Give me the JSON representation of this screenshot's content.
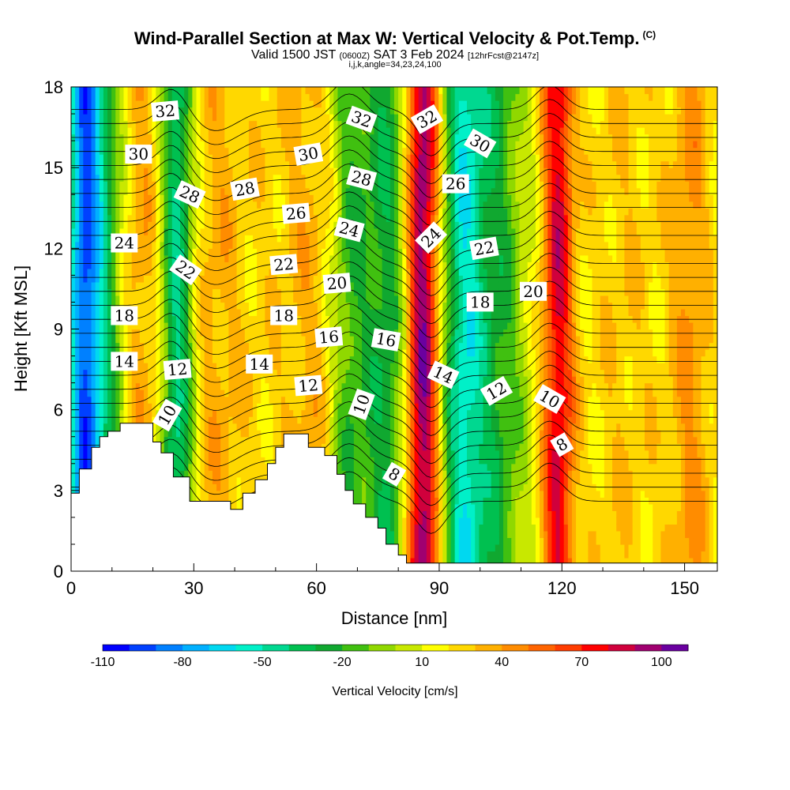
{
  "header": {
    "title": "Wind-Parallel Section at Max W: Vertical Velocity & Pot.Temp.",
    "copyright": "(C)",
    "valid_prefix": "Valid 1500 JST",
    "valid_utc": "(0600Z)",
    "valid_date": "SAT 3 Feb 2024",
    "forecast": "[12hrFcst@2147z]",
    "ijk_line": "i,j,k,angle=34,23,24,100"
  },
  "chart_data": {
    "type": "heatmap",
    "xlabel": "Distance [nm]",
    "ylabel": "Height [Kft MSL]",
    "xlim": [
      0,
      158
    ],
    "ylim": [
      0,
      18
    ],
    "x_ticks": [
      0,
      30,
      60,
      90,
      120,
      150
    ],
    "y_ticks": [
      0,
      3,
      6,
      9,
      12,
      15,
      18
    ],
    "colorbar": {
      "label": "Vertical Velocity [cm/s]",
      "tick_labels": [
        "-110",
        "-80",
        "-50",
        "-20",
        "10",
        "40",
        "70",
        "100"
      ],
      "levels": [
        -110,
        -100,
        -90,
        -80,
        -70,
        -60,
        -50,
        -40,
        -30,
        -20,
        -10,
        0,
        10,
        20,
        30,
        40,
        50,
        60,
        70,
        80,
        90,
        100,
        110
      ],
      "colors": [
        "#0000ff",
        "#0040ff",
        "#0080ff",
        "#00b0ff",
        "#00d8f0",
        "#00f0c8",
        "#00d890",
        "#00c050",
        "#10a830",
        "#40c010",
        "#90d800",
        "#c8e800",
        "#ffff00",
        "#ffd800",
        "#ffb000",
        "#ff8c00",
        "#ff6400",
        "#ff3c00",
        "#ff0000",
        "#d0003c",
        "#a00070",
        "#6a00a0"
      ]
    },
    "velocity_features": [
      {
        "x": 3,
        "width": 4,
        "w": -85
      },
      {
        "x": 8,
        "width": 5,
        "w": -40
      },
      {
        "x": 17,
        "width": 6,
        "w": 30
      },
      {
        "x": 26,
        "width": 4,
        "w": -60
      },
      {
        "x": 35,
        "width": 8,
        "w": 25
      },
      {
        "x": 50,
        "width": 10,
        "w": 15
      },
      {
        "x": 60,
        "width": 7,
        "w": 20
      },
      {
        "x": 68,
        "width": 5,
        "w": -30
      },
      {
        "x": 77,
        "width": 5,
        "w": -35
      },
      {
        "x": 86,
        "width": 4,
        "w": 90
      },
      {
        "x": 96,
        "width": 5,
        "w": -60
      },
      {
        "x": 104,
        "width": 6,
        "w": -30
      },
      {
        "x": 119,
        "width": 4,
        "w": 70
      },
      {
        "x": 135,
        "width": 12,
        "w": 20
      },
      {
        "x": 152,
        "width": 6,
        "w": 30
      }
    ],
    "terrain": [
      [
        0,
        2.9
      ],
      [
        2,
        2.9
      ],
      [
        2,
        3.8
      ],
      [
        5,
        3.8
      ],
      [
        5,
        4.6
      ],
      [
        7,
        4.6
      ],
      [
        7,
        5.0
      ],
      [
        9,
        5.0
      ],
      [
        9,
        5.2
      ],
      [
        12,
        5.2
      ],
      [
        12,
        5.5
      ],
      [
        20,
        5.5
      ],
      [
        20,
        4.8
      ],
      [
        22,
        4.8
      ],
      [
        22,
        4.4
      ],
      [
        25,
        4.4
      ],
      [
        25,
        3.5
      ],
      [
        29,
        3.5
      ],
      [
        29,
        2.6
      ],
      [
        34,
        2.6
      ],
      [
        34,
        2.6
      ],
      [
        39,
        2.6
      ],
      [
        39,
        2.3
      ],
      [
        42,
        2.3
      ],
      [
        42,
        2.9
      ],
      [
        45,
        2.9
      ],
      [
        45,
        3.4
      ],
      [
        48,
        3.4
      ],
      [
        48,
        4.0
      ],
      [
        50,
        4.0
      ],
      [
        50,
        4.6
      ],
      [
        52,
        4.6
      ],
      [
        52,
        5.1
      ],
      [
        58,
        5.1
      ],
      [
        58,
        4.6
      ],
      [
        62,
        4.6
      ],
      [
        62,
        4.3
      ],
      [
        65,
        4.3
      ],
      [
        65,
        3.6
      ],
      [
        67,
        3.6
      ],
      [
        67,
        3.0
      ],
      [
        69,
        3.0
      ],
      [
        69,
        2.5
      ],
      [
        72,
        2.5
      ],
      [
        72,
        2.0
      ],
      [
        75,
        2.0
      ],
      [
        75,
        1.6
      ],
      [
        77,
        1.6
      ],
      [
        77,
        1.0
      ],
      [
        80,
        1.0
      ],
      [
        80,
        0.6
      ],
      [
        82,
        0.6
      ],
      [
        82,
        0.3
      ],
      [
        158,
        0.3
      ]
    ],
    "theta_labels": [
      {
        "text": "32",
        "x": 23,
        "y": 17.1,
        "angle": -5
      },
      {
        "text": "30",
        "x": 16.5,
        "y": 15.5,
        "angle": 0
      },
      {
        "text": "28",
        "x": 29,
        "y": 14.0,
        "angle": 25
      },
      {
        "text": "28",
        "x": 42.5,
        "y": 14.2,
        "angle": -10
      },
      {
        "text": "24",
        "x": 13,
        "y": 12.2,
        "angle": 0
      },
      {
        "text": "22",
        "x": 28,
        "y": 11.2,
        "angle": 35
      },
      {
        "text": "18",
        "x": 13,
        "y": 9.5,
        "angle": 0
      },
      {
        "text": "14",
        "x": 13,
        "y": 7.8,
        "angle": 0
      },
      {
        "text": "12",
        "x": 26,
        "y": 7.5,
        "angle": -5
      },
      {
        "text": "10",
        "x": 23.5,
        "y": 5.8,
        "angle": -60
      },
      {
        "text": "14",
        "x": 46,
        "y": 7.7,
        "angle": 0
      },
      {
        "text": "12",
        "x": 58,
        "y": 6.9,
        "angle": -5
      },
      {
        "text": "18",
        "x": 52,
        "y": 9.5,
        "angle": 0
      },
      {
        "text": "22",
        "x": 52,
        "y": 11.4,
        "angle": -5
      },
      {
        "text": "26",
        "x": 55,
        "y": 13.3,
        "angle": -5
      },
      {
        "text": "30",
        "x": 58,
        "y": 15.5,
        "angle": -10
      },
      {
        "text": "32",
        "x": 71,
        "y": 16.8,
        "angle": 20
      },
      {
        "text": "28",
        "x": 71,
        "y": 14.6,
        "angle": 15
      },
      {
        "text": "24",
        "x": 68,
        "y": 12.7,
        "angle": 15
      },
      {
        "text": "20",
        "x": 65,
        "y": 10.7,
        "angle": -5
      },
      {
        "text": "16",
        "x": 63,
        "y": 8.7,
        "angle": -5
      },
      {
        "text": "16",
        "x": 77,
        "y": 8.6,
        "angle": 10
      },
      {
        "text": "10",
        "x": 71,
        "y": 6.2,
        "angle": -70
      },
      {
        "text": "8",
        "x": 79,
        "y": 3.6,
        "angle": 30
      },
      {
        "text": "32",
        "x": 87,
        "y": 16.8,
        "angle": -30
      },
      {
        "text": "24",
        "x": 88,
        "y": 12.4,
        "angle": -45
      },
      {
        "text": "14",
        "x": 91,
        "y": 7.3,
        "angle": 25
      },
      {
        "text": "26",
        "x": 94,
        "y": 14.4,
        "angle": 0
      },
      {
        "text": "30",
        "x": 100,
        "y": 15.9,
        "angle": 30
      },
      {
        "text": "22",
        "x": 101,
        "y": 12.0,
        "angle": -10
      },
      {
        "text": "18",
        "x": 100,
        "y": 10.0,
        "angle": 0
      },
      {
        "text": "20",
        "x": 113,
        "y": 10.4,
        "angle": 0
      },
      {
        "text": "12",
        "x": 104,
        "y": 6.7,
        "angle": -30
      },
      {
        "text": "10",
        "x": 117,
        "y": 6.4,
        "angle": 30
      },
      {
        "text": "8",
        "x": 120,
        "y": 4.7,
        "angle": -30
      }
    ]
  }
}
